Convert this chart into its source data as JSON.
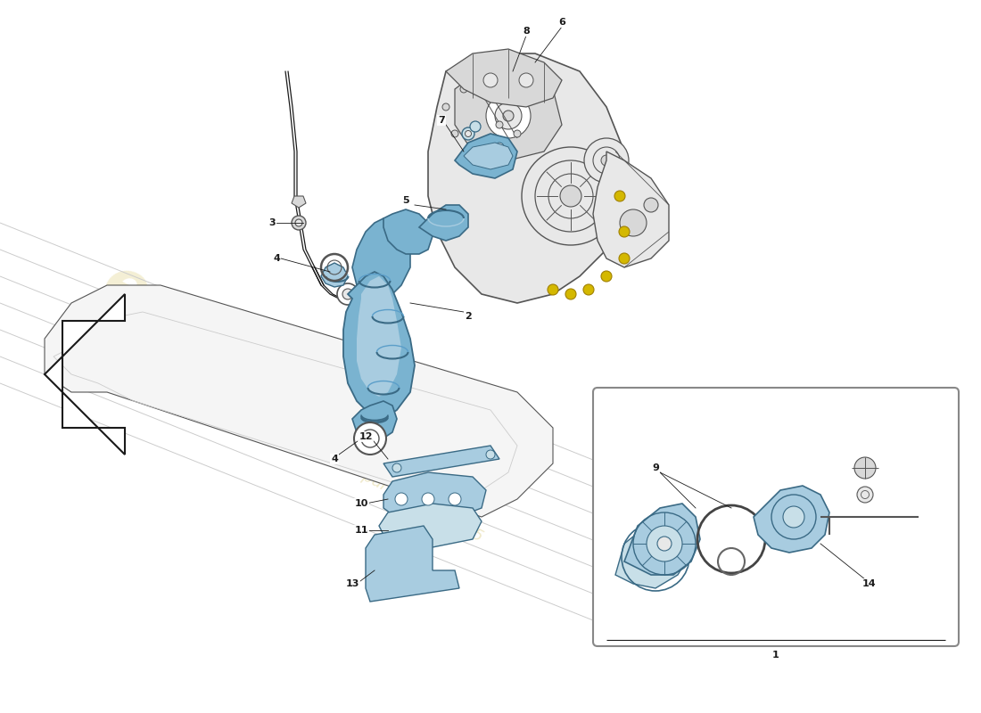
{
  "bg_color": "#ffffff",
  "blue1": "#5b9ec9",
  "blue2": "#7ab3d0",
  "blue3": "#a8cce0",
  "blue4": "#c8dfe8",
  "dark_blue": "#3a6a85",
  "engine_fill": "#e8e8e8",
  "engine_fill2": "#d8d8d8",
  "engine_line": "#555555",
  "black": "#1a1a1a",
  "grey": "#888888",
  "light_grey": "#cccccc",
  "wm1": "#d4c055",
  "wm2": "#c8b040",
  "pipe_fill": "#f5f5f5",
  "pipe_dark": "#999999",
  "yellow_bolt": "#d4b800"
}
